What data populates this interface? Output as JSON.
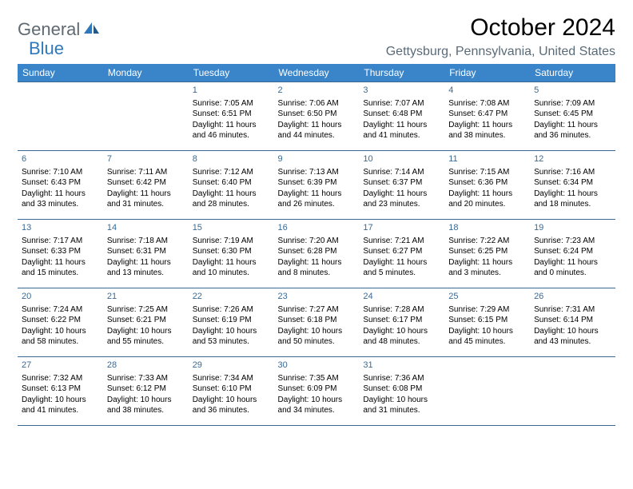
{
  "logo": {
    "general": "General",
    "blue": "Blue"
  },
  "title": "October 2024",
  "location": "Gettysburg, Pennsylvania, United States",
  "colors": {
    "header_bg": "#3a85c9",
    "header_text": "#ffffff",
    "cell_border": "#3a6a94",
    "daynum": "#3a6a94",
    "location_text": "#5a6b78",
    "logo_gray": "#5f6a72",
    "logo_blue": "#2f78bb",
    "background": "#ffffff"
  },
  "typography": {
    "title_fontsize": 30,
    "location_fontsize": 16,
    "header_fontsize": 12,
    "daynum_fontsize": 11,
    "cell_fontsize": 10,
    "logo_fontsize": 22
  },
  "day_headers": [
    "Sunday",
    "Monday",
    "Tuesday",
    "Wednesday",
    "Thursday",
    "Friday",
    "Saturday"
  ],
  "weeks": [
    [
      null,
      null,
      {
        "day": "1",
        "sunrise": "Sunrise: 7:05 AM",
        "sunset": "Sunset: 6:51 PM",
        "daylight1": "Daylight: 11 hours",
        "daylight2": "and 46 minutes."
      },
      {
        "day": "2",
        "sunrise": "Sunrise: 7:06 AM",
        "sunset": "Sunset: 6:50 PM",
        "daylight1": "Daylight: 11 hours",
        "daylight2": "and 44 minutes."
      },
      {
        "day": "3",
        "sunrise": "Sunrise: 7:07 AM",
        "sunset": "Sunset: 6:48 PM",
        "daylight1": "Daylight: 11 hours",
        "daylight2": "and 41 minutes."
      },
      {
        "day": "4",
        "sunrise": "Sunrise: 7:08 AM",
        "sunset": "Sunset: 6:47 PM",
        "daylight1": "Daylight: 11 hours",
        "daylight2": "and 38 minutes."
      },
      {
        "day": "5",
        "sunrise": "Sunrise: 7:09 AM",
        "sunset": "Sunset: 6:45 PM",
        "daylight1": "Daylight: 11 hours",
        "daylight2": "and 36 minutes."
      }
    ],
    [
      {
        "day": "6",
        "sunrise": "Sunrise: 7:10 AM",
        "sunset": "Sunset: 6:43 PM",
        "daylight1": "Daylight: 11 hours",
        "daylight2": "and 33 minutes."
      },
      {
        "day": "7",
        "sunrise": "Sunrise: 7:11 AM",
        "sunset": "Sunset: 6:42 PM",
        "daylight1": "Daylight: 11 hours",
        "daylight2": "and 31 minutes."
      },
      {
        "day": "8",
        "sunrise": "Sunrise: 7:12 AM",
        "sunset": "Sunset: 6:40 PM",
        "daylight1": "Daylight: 11 hours",
        "daylight2": "and 28 minutes."
      },
      {
        "day": "9",
        "sunrise": "Sunrise: 7:13 AM",
        "sunset": "Sunset: 6:39 PM",
        "daylight1": "Daylight: 11 hours",
        "daylight2": "and 26 minutes."
      },
      {
        "day": "10",
        "sunrise": "Sunrise: 7:14 AM",
        "sunset": "Sunset: 6:37 PM",
        "daylight1": "Daylight: 11 hours",
        "daylight2": "and 23 minutes."
      },
      {
        "day": "11",
        "sunrise": "Sunrise: 7:15 AM",
        "sunset": "Sunset: 6:36 PM",
        "daylight1": "Daylight: 11 hours",
        "daylight2": "and 20 minutes."
      },
      {
        "day": "12",
        "sunrise": "Sunrise: 7:16 AM",
        "sunset": "Sunset: 6:34 PM",
        "daylight1": "Daylight: 11 hours",
        "daylight2": "and 18 minutes."
      }
    ],
    [
      {
        "day": "13",
        "sunrise": "Sunrise: 7:17 AM",
        "sunset": "Sunset: 6:33 PM",
        "daylight1": "Daylight: 11 hours",
        "daylight2": "and 15 minutes."
      },
      {
        "day": "14",
        "sunrise": "Sunrise: 7:18 AM",
        "sunset": "Sunset: 6:31 PM",
        "daylight1": "Daylight: 11 hours",
        "daylight2": "and 13 minutes."
      },
      {
        "day": "15",
        "sunrise": "Sunrise: 7:19 AM",
        "sunset": "Sunset: 6:30 PM",
        "daylight1": "Daylight: 11 hours",
        "daylight2": "and 10 minutes."
      },
      {
        "day": "16",
        "sunrise": "Sunrise: 7:20 AM",
        "sunset": "Sunset: 6:28 PM",
        "daylight1": "Daylight: 11 hours",
        "daylight2": "and 8 minutes."
      },
      {
        "day": "17",
        "sunrise": "Sunrise: 7:21 AM",
        "sunset": "Sunset: 6:27 PM",
        "daylight1": "Daylight: 11 hours",
        "daylight2": "and 5 minutes."
      },
      {
        "day": "18",
        "sunrise": "Sunrise: 7:22 AM",
        "sunset": "Sunset: 6:25 PM",
        "daylight1": "Daylight: 11 hours",
        "daylight2": "and 3 minutes."
      },
      {
        "day": "19",
        "sunrise": "Sunrise: 7:23 AM",
        "sunset": "Sunset: 6:24 PM",
        "daylight1": "Daylight: 11 hours",
        "daylight2": "and 0 minutes."
      }
    ],
    [
      {
        "day": "20",
        "sunrise": "Sunrise: 7:24 AM",
        "sunset": "Sunset: 6:22 PM",
        "daylight1": "Daylight: 10 hours",
        "daylight2": "and 58 minutes."
      },
      {
        "day": "21",
        "sunrise": "Sunrise: 7:25 AM",
        "sunset": "Sunset: 6:21 PM",
        "daylight1": "Daylight: 10 hours",
        "daylight2": "and 55 minutes."
      },
      {
        "day": "22",
        "sunrise": "Sunrise: 7:26 AM",
        "sunset": "Sunset: 6:19 PM",
        "daylight1": "Daylight: 10 hours",
        "daylight2": "and 53 minutes."
      },
      {
        "day": "23",
        "sunrise": "Sunrise: 7:27 AM",
        "sunset": "Sunset: 6:18 PM",
        "daylight1": "Daylight: 10 hours",
        "daylight2": "and 50 minutes."
      },
      {
        "day": "24",
        "sunrise": "Sunrise: 7:28 AM",
        "sunset": "Sunset: 6:17 PM",
        "daylight1": "Daylight: 10 hours",
        "daylight2": "and 48 minutes."
      },
      {
        "day": "25",
        "sunrise": "Sunrise: 7:29 AM",
        "sunset": "Sunset: 6:15 PM",
        "daylight1": "Daylight: 10 hours",
        "daylight2": "and 45 minutes."
      },
      {
        "day": "26",
        "sunrise": "Sunrise: 7:31 AM",
        "sunset": "Sunset: 6:14 PM",
        "daylight1": "Daylight: 10 hours",
        "daylight2": "and 43 minutes."
      }
    ],
    [
      {
        "day": "27",
        "sunrise": "Sunrise: 7:32 AM",
        "sunset": "Sunset: 6:13 PM",
        "daylight1": "Daylight: 10 hours",
        "daylight2": "and 41 minutes."
      },
      {
        "day": "28",
        "sunrise": "Sunrise: 7:33 AM",
        "sunset": "Sunset: 6:12 PM",
        "daylight1": "Daylight: 10 hours",
        "daylight2": "and 38 minutes."
      },
      {
        "day": "29",
        "sunrise": "Sunrise: 7:34 AM",
        "sunset": "Sunset: 6:10 PM",
        "daylight1": "Daylight: 10 hours",
        "daylight2": "and 36 minutes."
      },
      {
        "day": "30",
        "sunrise": "Sunrise: 7:35 AM",
        "sunset": "Sunset: 6:09 PM",
        "daylight1": "Daylight: 10 hours",
        "daylight2": "and 34 minutes."
      },
      {
        "day": "31",
        "sunrise": "Sunrise: 7:36 AM",
        "sunset": "Sunset: 6:08 PM",
        "daylight1": "Daylight: 10 hours",
        "daylight2": "and 31 minutes."
      },
      null,
      null
    ]
  ]
}
